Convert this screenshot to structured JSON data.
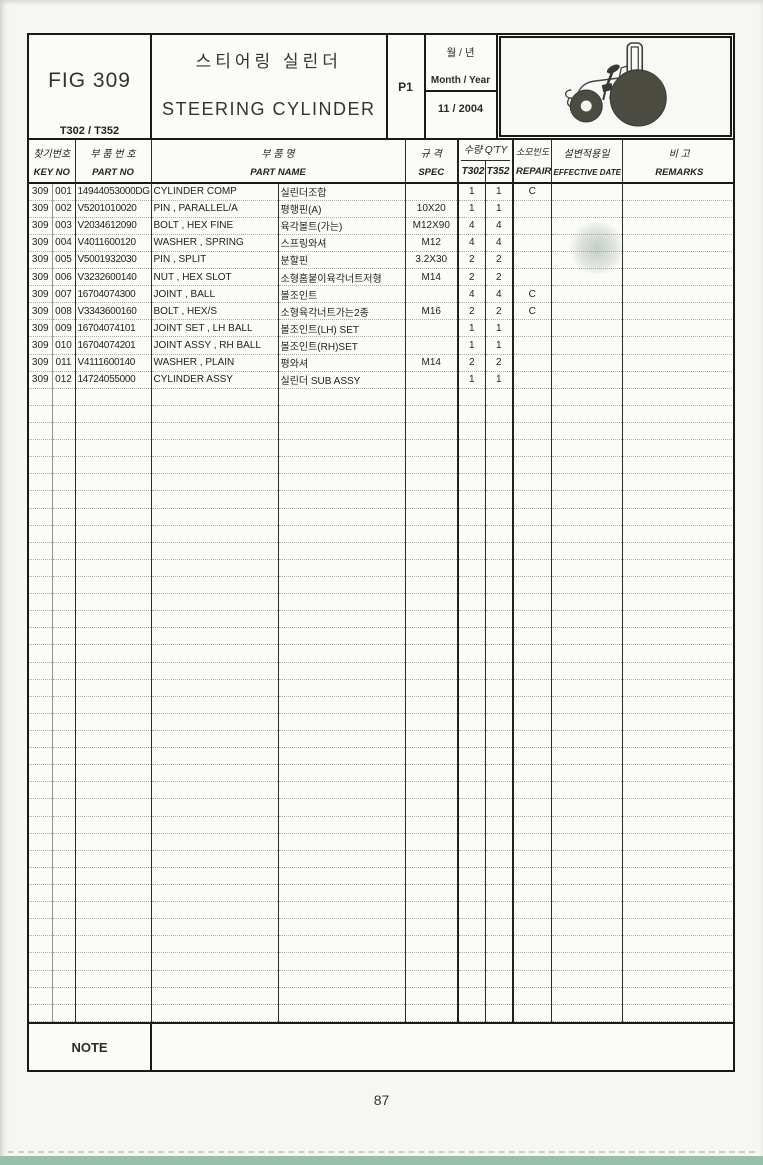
{
  "page": {
    "fig_label": "FIG 309",
    "model_label": "T302 / T352",
    "title_ko": "스티어링 실린더",
    "title_en": "STEERING CYLINDER",
    "page_code": "P1",
    "month_year_ko": "월 / 년",
    "month_year_en": "Month / Year",
    "month_year_value": "11 / 2004",
    "note_label": "NOTE",
    "page_number": "87"
  },
  "colors": {
    "paper": "#f6f6f3",
    "line_dark": "#1a1a1a",
    "row_line": "#a3b1a6",
    "wheel_fill": "#4b4b41",
    "bottom_band": "#97bfa9"
  },
  "icons": {
    "tractor": "tractor-icon"
  },
  "table": {
    "headers": {
      "key_no_ko": "찾기번호",
      "key_no_en": "KEY NO",
      "part_no_ko": "부 품 번 호",
      "part_no_en": "PART NO",
      "part_name_ko": "부    품    명",
      "part_name_en": "PART NAME",
      "spec_ko": "규  격",
      "spec_en": "SPEC",
      "qty_ko": "수량 Q'TY",
      "qty_t302": "T302",
      "qty_t352": "T352",
      "repair_ko": "소모빈도",
      "repair_en": "REPAIR",
      "effective_ko": "설변적용일",
      "effective_en": "EFFECTIVE DATE",
      "remarks_ko": "비    고",
      "remarks_en": "REMARKS"
    },
    "empty_row_count": 37,
    "rows": [
      {
        "fig": "309",
        "key": "001",
        "part_no": "14944053000DG",
        "name_en": "CYLINDER COMP",
        "name_ko": "실린더조합",
        "spec": "",
        "qty_t302": "1",
        "qty_t352": "1",
        "repair": "C",
        "effective": "",
        "remarks": ""
      },
      {
        "fig": "309",
        "key": "002",
        "part_no": "V5201010020",
        "name_en": "PIN , PARALLEL/A",
        "name_ko": "평행핀(A)",
        "spec": "10X20",
        "qty_t302": "1",
        "qty_t352": "1",
        "repair": "",
        "effective": "",
        "remarks": ""
      },
      {
        "fig": "309",
        "key": "003",
        "part_no": "V2034612090",
        "name_en": "BOLT , HEX FINE",
        "name_ko": "육각볼트(가는)",
        "spec": "M12X90",
        "qty_t302": "4",
        "qty_t352": "4",
        "repair": "",
        "effective": "",
        "remarks": ""
      },
      {
        "fig": "309",
        "key": "004",
        "part_no": "V4011600120",
        "name_en": "WASHER , SPRING",
        "name_ko": "스프링와셔",
        "spec": "M12",
        "qty_t302": "4",
        "qty_t352": "4",
        "repair": "",
        "effective": "",
        "remarks": ""
      },
      {
        "fig": "309",
        "key": "005",
        "part_no": "V5001932030",
        "name_en": "PIN , SPLIT",
        "name_ko": "분할핀",
        "spec": "3.2X30",
        "qty_t302": "2",
        "qty_t352": "2",
        "repair": "",
        "effective": "",
        "remarks": ""
      },
      {
        "fig": "309",
        "key": "006",
        "part_no": "V3232600140",
        "name_en": "NUT , HEX SLOT",
        "name_ko": "소형홈붙이육각너트저형",
        "spec": "M14",
        "qty_t302": "2",
        "qty_t352": "2",
        "repair": "",
        "effective": "",
        "remarks": ""
      },
      {
        "fig": "309",
        "key": "007",
        "part_no": "16704074300",
        "name_en": "JOINT , BALL",
        "name_ko": "볼조인트",
        "spec": "",
        "qty_t302": "4",
        "qty_t352": "4",
        "repair": "C",
        "effective": "",
        "remarks": ""
      },
      {
        "fig": "309",
        "key": "008",
        "part_no": "V3343600160",
        "name_en": "BOLT , HEX/S",
        "name_ko": "소형육각너트가는2종",
        "spec": "M16",
        "qty_t302": "2",
        "qty_t352": "2",
        "repair": "C",
        "effective": "",
        "remarks": ""
      },
      {
        "fig": "309",
        "key": "009",
        "part_no": "16704074101",
        "name_en": "JOINT SET , LH BALL",
        "name_ko": "볼조인트(LH) SET",
        "spec": "",
        "qty_t302": "1",
        "qty_t352": "1",
        "repair": "",
        "effective": "",
        "remarks": ""
      },
      {
        "fig": "309",
        "key": "010",
        "part_no": "16704074201",
        "name_en": "JOINT ASSY , RH BALL",
        "name_ko": "볼조인트(RH)SET",
        "spec": "",
        "qty_t302": "1",
        "qty_t352": "1",
        "repair": "",
        "effective": "",
        "remarks": ""
      },
      {
        "fig": "309",
        "key": "011",
        "part_no": "V4111600140",
        "name_en": "WASHER , PLAIN",
        "name_ko": "평와셔",
        "spec": "M14",
        "qty_t302": "2",
        "qty_t352": "2",
        "repair": "",
        "effective": "",
        "remarks": ""
      },
      {
        "fig": "309",
        "key": "012",
        "part_no": "14724055000",
        "name_en": "CYLINDER ASSY",
        "name_ko": "실린더 SUB ASSY",
        "spec": "",
        "qty_t302": "1",
        "qty_t352": "1",
        "repair": "",
        "effective": "",
        "remarks": ""
      }
    ]
  }
}
